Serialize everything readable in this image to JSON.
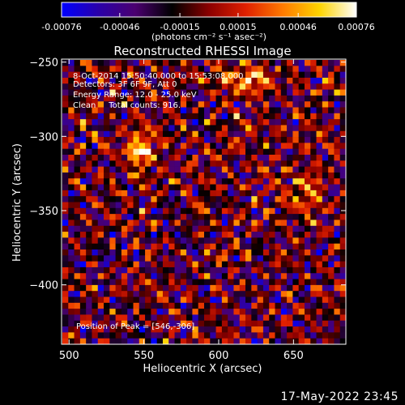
{
  "colorbar": {
    "ticks": [
      "-0.00076",
      "-0.00046",
      "-0.00015",
      "0.00015",
      "0.00046",
      "0.00076"
    ],
    "tick_values": [
      -0.00076,
      -0.00046,
      -0.00015,
      0.00015,
      0.00046,
      0.00076
    ],
    "range": [
      -0.00076,
      0.00076
    ],
    "units_label": "(photons cm⁻² s⁻¹ asec⁻²)",
    "colors": [
      "#0000ff",
      "#2a00aa",
      "#4b0070",
      "#000000",
      "#8b0000",
      "#e02000",
      "#ff7a00",
      "#ffd400",
      "#ffffff"
    ]
  },
  "chart_data": {
    "type": "heatmap",
    "title": "Reconstructed RHESSI Image",
    "xlabel": "Heliocentric X (arcsec)",
    "ylabel": "Heliocentric Y (arcsec)",
    "xlim": [
      495,
      685
    ],
    "ylim": [
      -440,
      -248
    ],
    "x_ticks": [
      500,
      550,
      600,
      650
    ],
    "y_ticks": [
      -250,
      -300,
      -350,
      -400
    ],
    "grid": false,
    "annotations": [
      "8-Oct-2014 15:50:40.000 to 15:53:08.000",
      "Detectors: 3F 6F 9F, Att 0",
      "Energy Range: 12.0 - 25.0 keV",
      "Clean     Total counts: 916."
    ],
    "peak_label": "Position of Peak = [546,-306]",
    "peak": [
      546,
      -306
    ]
  },
  "footer": {
    "timestamp": "17-May-2022 23:45"
  }
}
